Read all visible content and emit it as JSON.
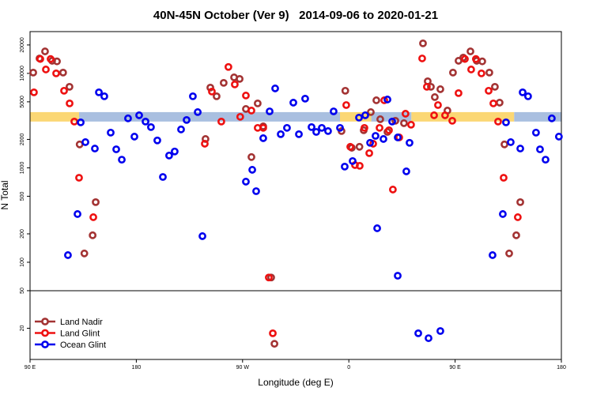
{
  "chart_data": {
    "type": "scatter",
    "title": "40N-45N October (Ver 9)   2014-09-06 to 2020-01-21",
    "x_label": "Longitude (deg E)",
    "y_label": "N Total",
    "xlim": [
      90,
      540
    ],
    "ylim": [
      9.35,
      27700
    ],
    "log_y": true,
    "panel_split": 50,
    "legend": "lower left",
    "xticks": [
      {
        "value": 90,
        "label": "90 E"
      },
      180,
      {
        "value": 270,
        "label": "90 W"
      },
      {
        "value": 360,
        "label": "0"
      },
      {
        "value": 450,
        "label": "90 E"
      },
      {
        "value": 540,
        "label": "180"
      }
    ],
    "yticks": [
      20,
      50,
      100,
      200,
      500,
      1000,
      2000,
      5000,
      10000,
      20000
    ],
    "band": {
      "ylim": [
        3090,
        3890
      ],
      "segments": [
        {
          "x": [
            90,
            131.5
          ],
          "color": "#fbd774"
        },
        {
          "x": [
            131.5,
            352.5
          ],
          "color": "#a9bfe0"
        },
        {
          "x": [
            352.5,
            379
          ],
          "color": "#fbd774"
        },
        {
          "x": [
            379,
            413
          ],
          "color": "#a9bfe0"
        },
        {
          "x": [
            413,
            500
          ],
          "color": "#fbd774"
        },
        {
          "x": [
            500,
            540
          ],
          "color": "#a9bfe0"
        }
      ]
    },
    "series": [
      {
        "name": "Land Nadir",
        "color": "#a33333",
        "x": [
          92.7,
          98,
          102.7,
          108.7,
          112.8,
          118,
          123.4,
          132,
          136,
          143,
          145.6,
          238.6,
          242.7,
          248,
          254,
          262.8,
          267.5,
          272.8,
          277.5,
          282.8,
          287.5,
          294.2,
          297,
          357,
          353.8,
          362.5,
          369,
          372.6,
          378.6,
          383.3,
          386.6,
          392.7,
          399.4,
          406.7,
          422.8,
          426.8,
          429.5,
          432.8,
          437.5,
          443.5,
          448.2,
          452.9,
          456.9,
          463,
          468.3,
          473,
          479,
          483.7,
          487.7,
          491.8,
          495.8,
          501.8,
          505.2
        ],
        "values": [
          10200,
          14400,
          17100,
          13600,
          13400,
          10200,
          7210,
          1770,
          124,
          193,
          433,
          2020,
          7070,
          5720,
          7940,
          9080,
          8740,
          4200,
          1300,
          4810,
          2750,
          69,
          13.7,
          6550,
          2450,
          1630,
          1670,
          2500,
          3890,
          5190,
          3270,
          2400,
          3150,
          2970,
          20800,
          8250,
          7210,
          5610,
          6800,
          4040,
          10200,
          13600,
          14700,
          17100,
          13600,
          13400,
          10200,
          7210,
          4900,
          1770,
          124,
          193,
          433
        ]
      },
      {
        "name": "Land Glint",
        "color": "#ee1111",
        "x": [
          93.3,
          98.7,
          103.4,
          107.4,
          112.1,
          118.8,
          123.5,
          127.5,
          131.5,
          143.6,
          238,
          244,
          252,
          258,
          263.4,
          268,
          272.8,
          277.5,
          282.8,
          287.5,
          292.2,
          295.6,
          357.8,
          361.2,
          365.2,
          369.2,
          373.2,
          377.3,
          380.6,
          386,
          390,
          394,
          397.3,
          402.7,
          408,
          412.7,
          422.1,
          426.1,
          432.2,
          435.5,
          441.5,
          447.6,
          452.9,
          458.3,
          463.6,
          467.6,
          472.3,
          478.4,
          482.4,
          486.4,
          491.1,
          503.1
        ],
        "values": [
          6300,
          14200,
          11000,
          14200,
          10000,
          6550,
          4810,
          3090,
          785,
          300,
          1800,
          6420,
          3090,
          11700,
          7640,
          3470,
          5830,
          4040,
          2650,
          2650,
          69,
          17.7,
          4620,
          1670,
          1070,
          1050,
          2650,
          1430,
          1800,
          2650,
          5190,
          2500,
          589,
          2100,
          3740,
          2860,
          14400,
          7210,
          3600,
          4620,
          3600,
          3150,
          6180,
          14200,
          11000,
          14200,
          10000,
          6550,
          4810,
          3090,
          785,
          300
        ]
      },
      {
        "name": "Ocean Glint",
        "color": "#0000ee",
        "x": [
          122.1,
          130.2,
          132.9,
          136.9,
          144.9,
          148.3,
          152.9,
          158.3,
          163,
          167.7,
          173,
          178.4,
          182.4,
          187.8,
          192.4,
          197.8,
          202.5,
          207.8,
          212.5,
          217.9,
          222.6,
          227.9,
          232,
          236,
          272.8,
          278.2,
          281.5,
          287.5,
          292.9,
          297.6,
          302.3,
          307.6,
          313,
          317.7,
          323,
          328.4,
          332.4,
          337.1,
          342.4,
          347.1,
          352.5,
          356.5,
          363.2,
          368.6,
          373.9,
          378,
          382.6,
          384,
          389.3,
          392.7,
          396.7,
          401.4,
          401.4,
          408.7,
          411.4,
          418.8,
          427.5,
          437.5,
          481.7,
          490.4,
          493.1,
          497.1,
          505.2,
          507.2,
          511.8,
          518.5,
          521.9,
          526.6,
          531.9,
          537.9
        ],
        "values": [
          119,
          324,
          3030,
          1870,
          1600,
          6300,
          5720,
          2360,
          1570,
          1220,
          3340,
          2140,
          3600,
          3090,
          2700,
          1950,
          800,
          1350,
          1490,
          2550,
          3210,
          5720,
          3890,
          189,
          714,
          953,
          566,
          2060,
          3960,
          6930,
          2270,
          2650,
          4900,
          2270,
          5400,
          2700,
          2400,
          2650,
          2450,
          3960,
          2650,
          1030,
          1180,
          3400,
          3600,
          1840,
          2180,
          229,
          2020,
          5290,
          3090,
          2100,
          72,
          917,
          1840,
          17.7,
          15.7,
          18.7,
          119,
          324,
          3030,
          1870,
          1600,
          6300,
          5720,
          2360,
          1570,
          1220,
          3340,
          2140
        ]
      }
    ]
  }
}
